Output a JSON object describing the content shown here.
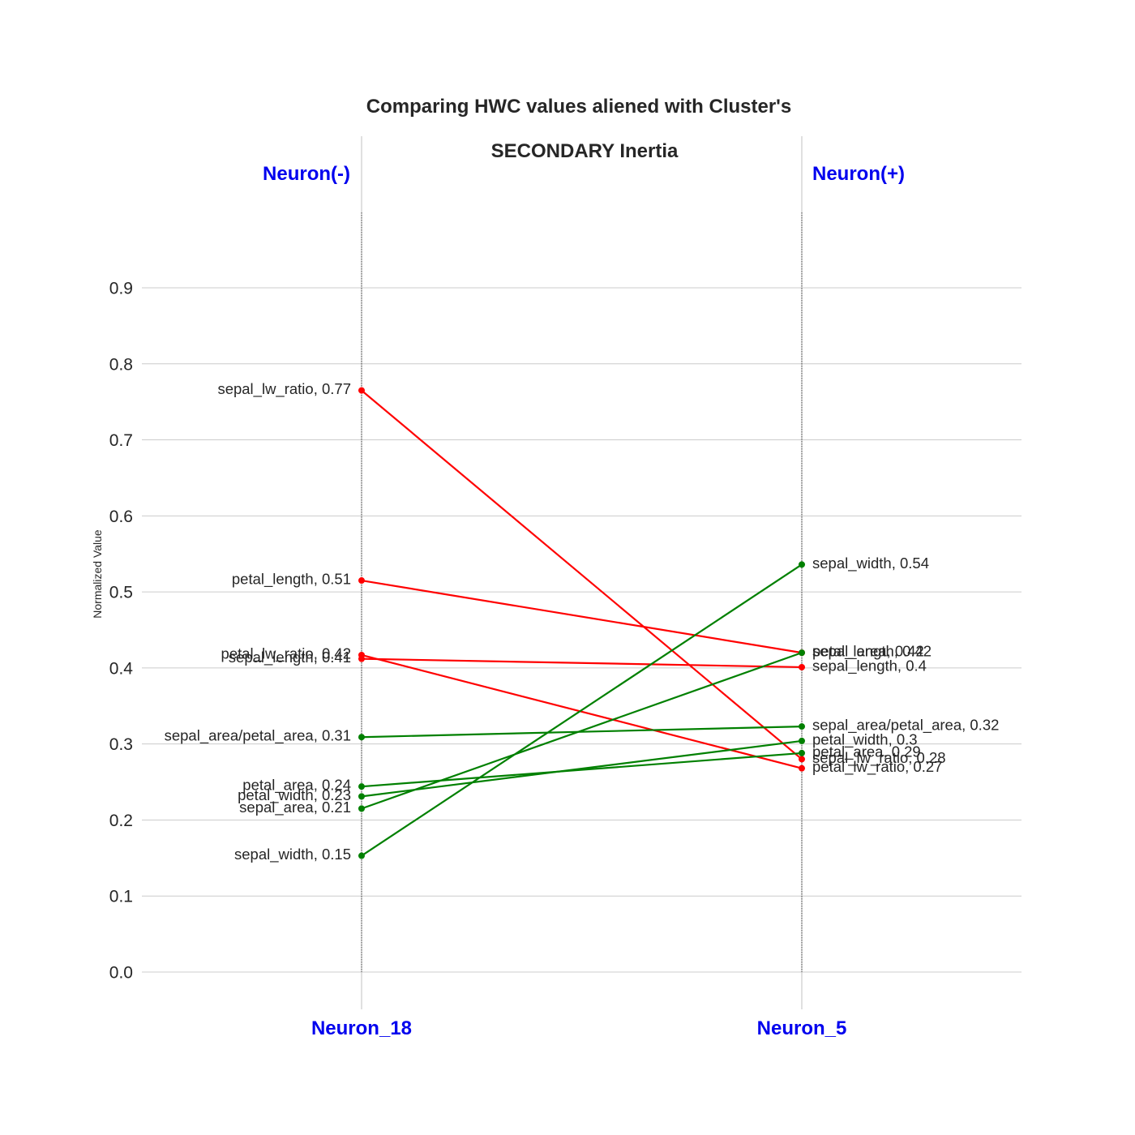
{
  "chart_data": {
    "type": "line",
    "title_line1": "Comparing HWC values aliened with Cluster's",
    "title_line2": "SECONDARY Inertia",
    "ylabel": "Normalized Value",
    "left_header": "Neuron(-)",
    "right_header": "Neuron(+)",
    "categories": [
      "Neuron_18",
      "Neuron_5"
    ],
    "ylim": [
      0.0,
      0.9
    ],
    "yticks": [
      "0.0",
      "0.1",
      "0.2",
      "0.3",
      "0.4",
      "0.5",
      "0.6",
      "0.7",
      "0.8",
      "0.9"
    ],
    "grid": true,
    "colors": {
      "decrease": "#ff0000",
      "increase": "#008000",
      "header": "#0000ee"
    },
    "series": [
      {
        "name": "sepal_lw_ratio",
        "values": [
          0.765,
          0.28
        ],
        "left_label": "sepal_lw_ratio, 0.77",
        "right_label": "sepal_lw_ratio, 0.28"
      },
      {
        "name": "petal_length",
        "values": [
          0.515,
          0.42
        ],
        "left_label": "petal_length, 0.51",
        "right_label": "petal_length, 0.42"
      },
      {
        "name": "petal_lw_ratio",
        "values": [
          0.417,
          0.268
        ],
        "left_label": "petal_lw_ratio, 0.42",
        "right_label": "petal_lw_ratio, 0.27"
      },
      {
        "name": "sepal_length",
        "values": [
          0.412,
          0.401
        ],
        "left_label": "sepal_length, 0.41",
        "right_label": "sepal_length, 0.4"
      },
      {
        "name": "sepal_area/petal_area",
        "values": [
          0.309,
          0.323
        ],
        "left_label": "sepal_area/petal_area, 0.31",
        "right_label": "sepal_area/petal_area, 0.32"
      },
      {
        "name": "petal_area",
        "values": [
          0.244,
          0.288
        ],
        "left_label": "petal_area, 0.24",
        "right_label": "petal_area, 0.29"
      },
      {
        "name": "petal_width",
        "values": [
          0.231,
          0.304
        ],
        "left_label": "petal_width, 0.23",
        "right_label": "petal_width, 0.3"
      },
      {
        "name": "sepal_area",
        "values": [
          0.215,
          0.42
        ],
        "left_label": "sepal_area, 0.21",
        "right_label": "sepal_area, 0.42"
      },
      {
        "name": "sepal_width",
        "values": [
          0.153,
          0.536
        ],
        "left_label": "sepal_width, 0.15",
        "right_label": "sepal_width, 0.54"
      }
    ]
  }
}
